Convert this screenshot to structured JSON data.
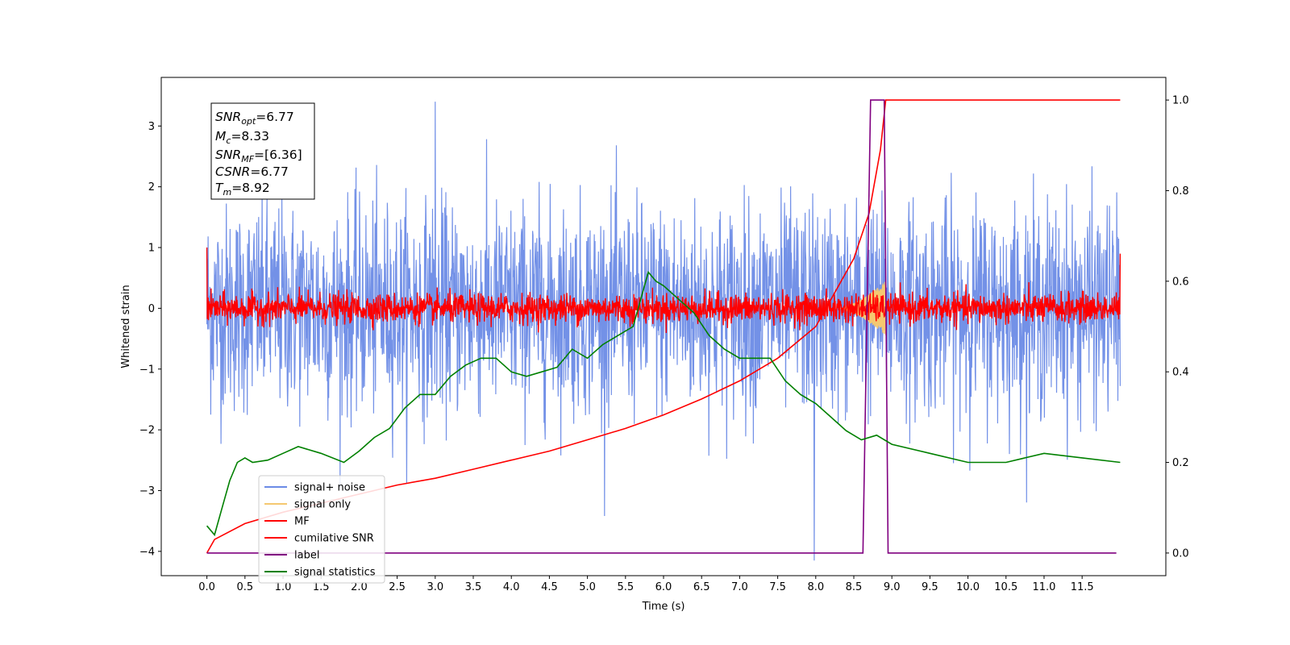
{
  "chart_data": {
    "type": "line",
    "title": "",
    "xlabel": "Time (s)",
    "ylabel": "Whitened strain",
    "ylabel_right": "",
    "xlim": [
      -0.6,
      12.6
    ],
    "ylim": [
      -4.4,
      3.8
    ],
    "ylim_right": [
      -0.05,
      1.05
    ],
    "x_ticks": [
      "0.0",
      "0.5",
      "1.0",
      "1.5",
      "2.0",
      "2.5",
      "3.0",
      "3.5",
      "4.0",
      "4.5",
      "5.0",
      "5.5",
      "6.0",
      "6.5",
      "7.0",
      "7.5",
      "8.0",
      "8.5",
      "9.0",
      "9.5",
      "10.0",
      "10.5",
      "11.0",
      "11.5"
    ],
    "y_ticks": [
      "−4",
      "−3",
      "−2",
      "−1",
      "0",
      "1",
      "2",
      "3"
    ],
    "y_ticks_right": [
      "0.0",
      "0.2",
      "0.4",
      "0.6",
      "0.8",
      "1.0"
    ],
    "grid": false,
    "legend_position": "lower-left",
    "annotation": {
      "snr_opt": {
        "base": "SNR",
        "sub": "opt",
        "value": "=6.77"
      },
      "mc": {
        "base": "M",
        "sub": "c",
        "value": "=8.33"
      },
      "snr_mf": {
        "base": "SNR",
        "sub": "MF",
        "value": "=[6.36]"
      },
      "csnr": {
        "base": "CSNR",
        "value": "=6.77"
      },
      "tm": {
        "base": "T",
        "sub": "m",
        "value": "=8.92"
      }
    },
    "series": [
      {
        "name": "signal+ noise",
        "axis": "left",
        "color": "#6b8be6",
        "kind": "noise",
        "x_range": [
          0,
          12.0
        ],
        "approx_std": 0.85,
        "max": 3.4,
        "min": -4.15
      },
      {
        "name": "signal only",
        "axis": "left",
        "color": "#f5c870",
        "kind": "chirp",
        "x_range": [
          8.3,
          8.92
        ],
        "peak_amplitude": 0.45
      },
      {
        "name": "MF",
        "axis": "left",
        "color": "#ff0000",
        "kind": "noise",
        "x_range": [
          0,
          12.0
        ],
        "approx_std": 0.12,
        "start_value": 1.0,
        "end_value": 0.9
      },
      {
        "name": "cumilative SNR",
        "axis": "right",
        "color": "#ff0000",
        "x": [
          0,
          0.1,
          0.5,
          1,
          1.5,
          2,
          2.5,
          3,
          3.5,
          4,
          4.5,
          5,
          5.5,
          6,
          6.5,
          7,
          7.5,
          8,
          8.5,
          8.7,
          8.85,
          8.92,
          9.0,
          12.0
        ],
        "y": [
          0,
          0.03,
          0.065,
          0.09,
          0.11,
          0.13,
          0.15,
          0.165,
          0.185,
          0.205,
          0.225,
          0.25,
          0.275,
          0.305,
          0.34,
          0.38,
          0.43,
          0.5,
          0.65,
          0.75,
          0.89,
          1.0,
          1.0,
          1.0
        ]
      },
      {
        "name": "label",
        "axis": "right",
        "color": "#800080",
        "x": [
          0,
          8.62,
          8.72,
          8.9,
          8.95,
          11.95
        ],
        "y": [
          0,
          0,
          1,
          1,
          0,
          0
        ]
      },
      {
        "name": "signal statistics",
        "axis": "right",
        "color": "#008000",
        "x": [
          0,
          0.1,
          0.2,
          0.3,
          0.4,
          0.5,
          0.6,
          0.8,
          1.0,
          1.2,
          1.5,
          1.8,
          2.0,
          2.2,
          2.4,
          2.6,
          2.8,
          3.0,
          3.2,
          3.4,
          3.6,
          3.8,
          4.0,
          4.2,
          4.4,
          4.6,
          4.8,
          5.0,
          5.2,
          5.4,
          5.6,
          5.8,
          5.9,
          6.0,
          6.2,
          6.4,
          6.6,
          6.8,
          7.0,
          7.2,
          7.4,
          7.6,
          7.8,
          8.0,
          8.2,
          8.4,
          8.6,
          8.8,
          9.0,
          9.5,
          10.0,
          10.5,
          11.0,
          11.5,
          12.0
        ],
        "y": [
          0.06,
          0.04,
          0.1,
          0.16,
          0.2,
          0.21,
          0.2,
          0.205,
          0.22,
          0.235,
          0.22,
          0.2,
          0.225,
          0.255,
          0.275,
          0.32,
          0.35,
          0.35,
          0.39,
          0.415,
          0.43,
          0.43,
          0.4,
          0.39,
          0.4,
          0.41,
          0.45,
          0.43,
          0.46,
          0.48,
          0.5,
          0.62,
          0.6,
          0.59,
          0.56,
          0.53,
          0.48,
          0.45,
          0.43,
          0.43,
          0.43,
          0.38,
          0.35,
          0.33,
          0.3,
          0.27,
          0.25,
          0.26,
          0.24,
          0.22,
          0.2,
          0.2,
          0.22,
          0.21,
          0.2
        ]
      }
    ]
  }
}
